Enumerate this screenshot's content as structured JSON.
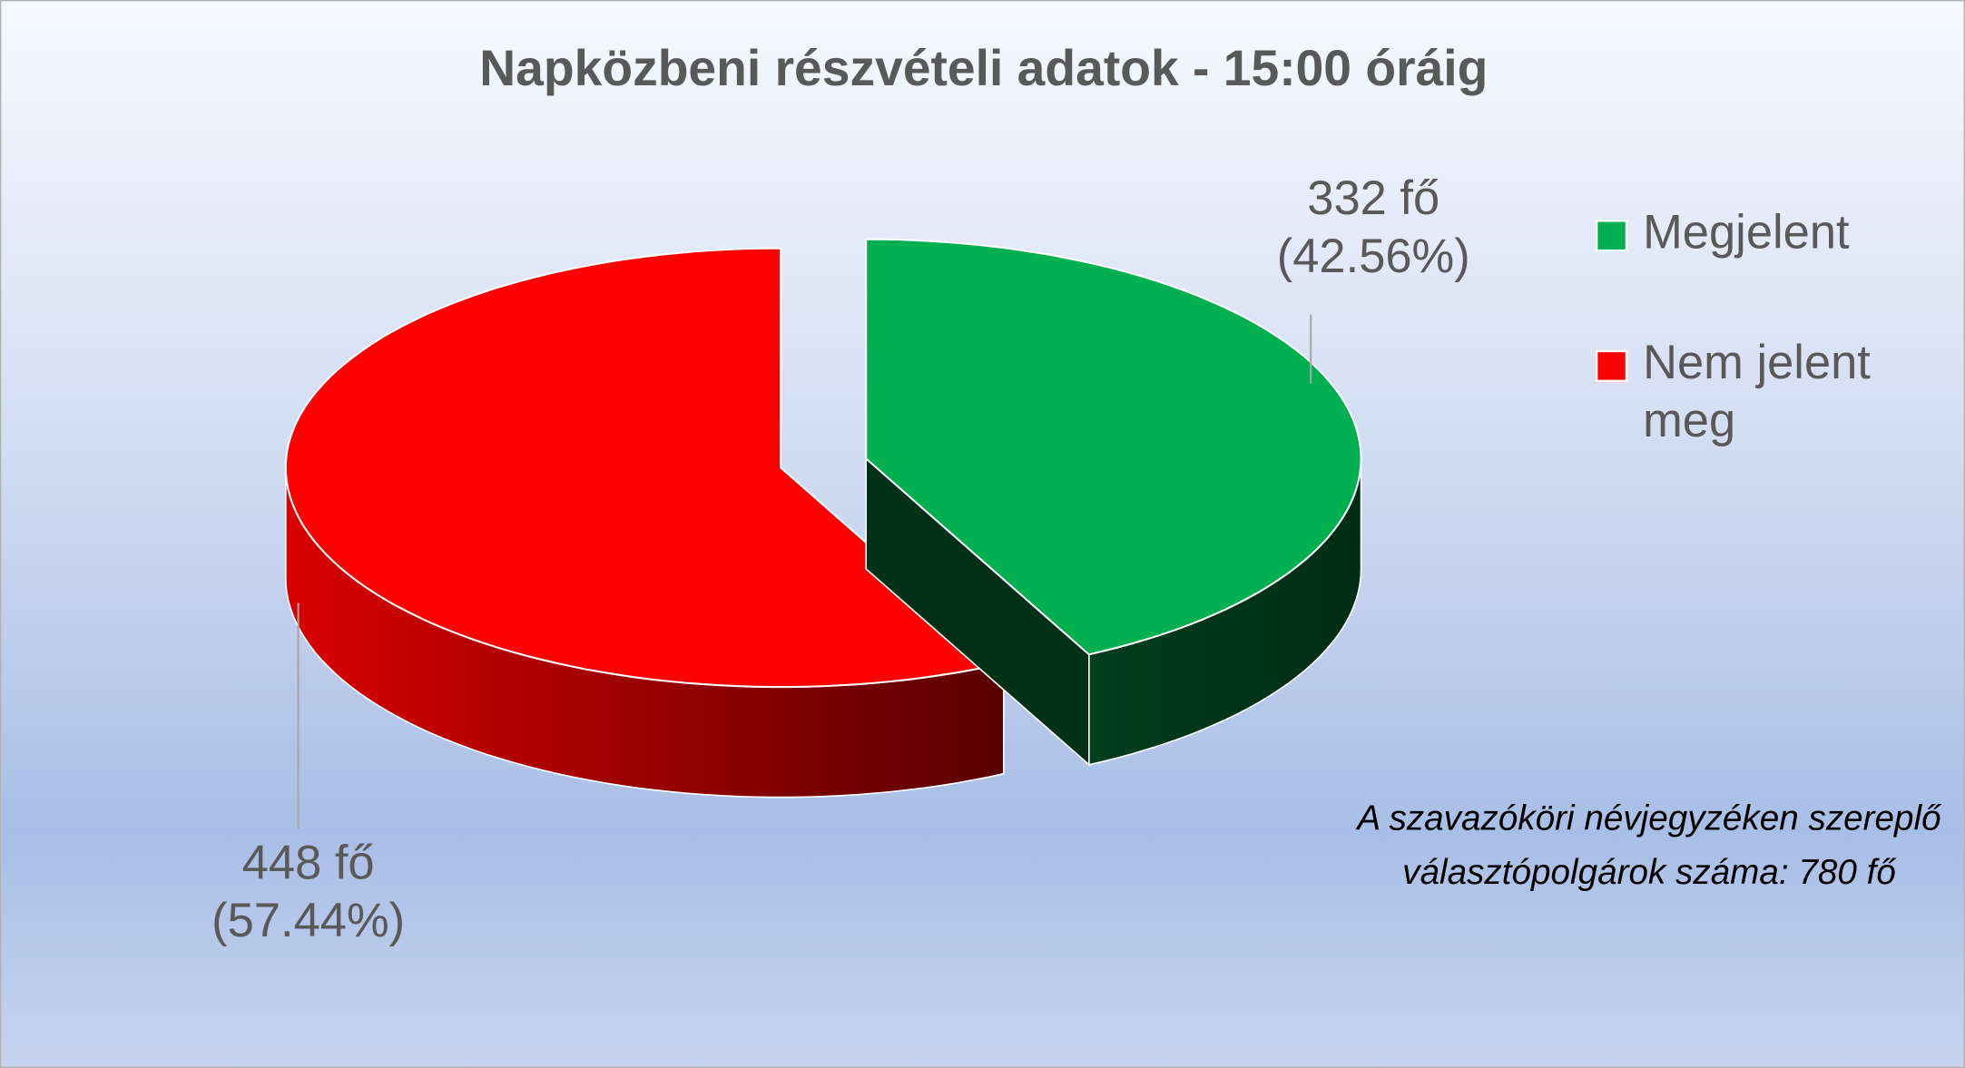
{
  "chart_data": {
    "type": "pie",
    "title": "Napközbeni részvételi adatok - 15:00 óráig",
    "categories": [
      "Megjelent",
      "Nem jelent meg"
    ],
    "values": [
      332,
      448
    ],
    "value_labels": [
      "332 fő\n(42.56%)",
      "448 fő\n(57.44%)"
    ],
    "colors": [
      "#00b050",
      "#ff0000"
    ],
    "legend": "right",
    "annotation": "A szavazóköri névjegyzéken szereplő választópolgárok száma: 780 fő"
  }
}
